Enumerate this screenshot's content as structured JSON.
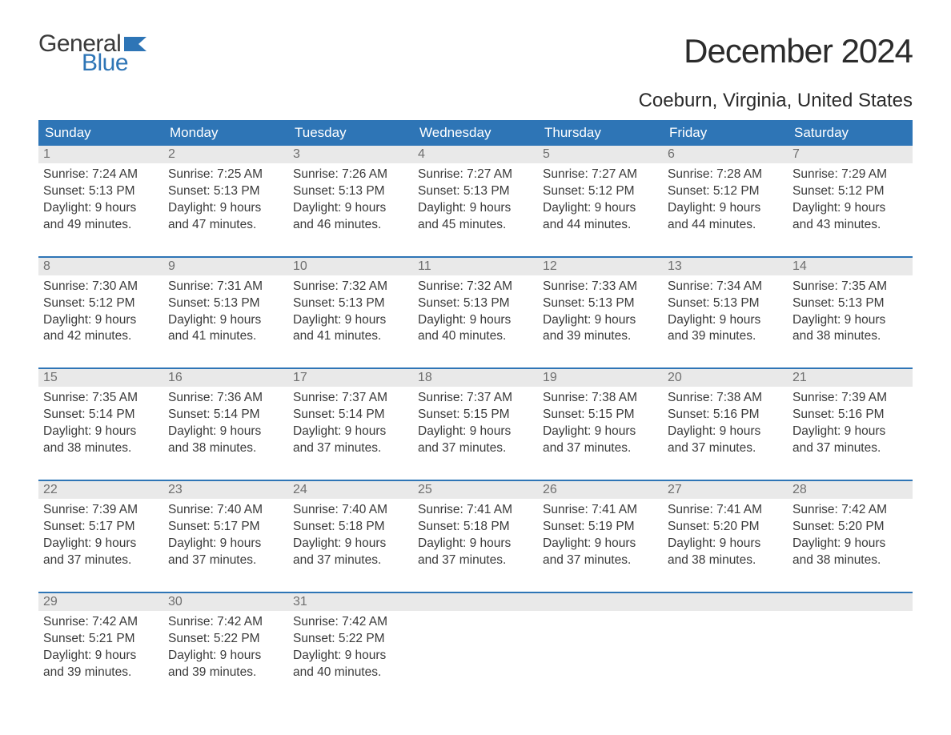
{
  "brand": {
    "top": "General",
    "bottom": "Blue"
  },
  "title": "December 2024",
  "location": "Coeburn, Virginia, United States",
  "colors": {
    "header_bg": "#2e75b6",
    "header_text": "#ffffff",
    "daynum_bg": "#e9e9e9",
    "daynum_text": "#6f6f6f",
    "body_text": "#3a3a3a",
    "week_rule": "#2e75b6",
    "brand_blue": "#2e75b6"
  },
  "days_of_week": [
    "Sunday",
    "Monday",
    "Tuesday",
    "Wednesday",
    "Thursday",
    "Friday",
    "Saturday"
  ],
  "weeks": [
    {
      "nums": [
        "1",
        "2",
        "3",
        "4",
        "5",
        "6",
        "7"
      ],
      "cells": [
        {
          "sunrise": "Sunrise: 7:24 AM",
          "sunset": "Sunset: 5:13 PM",
          "d1": "Daylight: 9 hours",
          "d2": "and 49 minutes."
        },
        {
          "sunrise": "Sunrise: 7:25 AM",
          "sunset": "Sunset: 5:13 PM",
          "d1": "Daylight: 9 hours",
          "d2": "and 47 minutes."
        },
        {
          "sunrise": "Sunrise: 7:26 AM",
          "sunset": "Sunset: 5:13 PM",
          "d1": "Daylight: 9 hours",
          "d2": "and 46 minutes."
        },
        {
          "sunrise": "Sunrise: 7:27 AM",
          "sunset": "Sunset: 5:13 PM",
          "d1": "Daylight: 9 hours",
          "d2": "and 45 minutes."
        },
        {
          "sunrise": "Sunrise: 7:27 AM",
          "sunset": "Sunset: 5:12 PM",
          "d1": "Daylight: 9 hours",
          "d2": "and 44 minutes."
        },
        {
          "sunrise": "Sunrise: 7:28 AM",
          "sunset": "Sunset: 5:12 PM",
          "d1": "Daylight: 9 hours",
          "d2": "and 44 minutes."
        },
        {
          "sunrise": "Sunrise: 7:29 AM",
          "sunset": "Sunset: 5:12 PM",
          "d1": "Daylight: 9 hours",
          "d2": "and 43 minutes."
        }
      ]
    },
    {
      "nums": [
        "8",
        "9",
        "10",
        "11",
        "12",
        "13",
        "14"
      ],
      "cells": [
        {
          "sunrise": "Sunrise: 7:30 AM",
          "sunset": "Sunset: 5:12 PM",
          "d1": "Daylight: 9 hours",
          "d2": "and 42 minutes."
        },
        {
          "sunrise": "Sunrise: 7:31 AM",
          "sunset": "Sunset: 5:13 PM",
          "d1": "Daylight: 9 hours",
          "d2": "and 41 minutes."
        },
        {
          "sunrise": "Sunrise: 7:32 AM",
          "sunset": "Sunset: 5:13 PM",
          "d1": "Daylight: 9 hours",
          "d2": "and 41 minutes."
        },
        {
          "sunrise": "Sunrise: 7:32 AM",
          "sunset": "Sunset: 5:13 PM",
          "d1": "Daylight: 9 hours",
          "d2": "and 40 minutes."
        },
        {
          "sunrise": "Sunrise: 7:33 AM",
          "sunset": "Sunset: 5:13 PM",
          "d1": "Daylight: 9 hours",
          "d2": "and 39 minutes."
        },
        {
          "sunrise": "Sunrise: 7:34 AM",
          "sunset": "Sunset: 5:13 PM",
          "d1": "Daylight: 9 hours",
          "d2": "and 39 minutes."
        },
        {
          "sunrise": "Sunrise: 7:35 AM",
          "sunset": "Sunset: 5:13 PM",
          "d1": "Daylight: 9 hours",
          "d2": "and 38 minutes."
        }
      ]
    },
    {
      "nums": [
        "15",
        "16",
        "17",
        "18",
        "19",
        "20",
        "21"
      ],
      "cells": [
        {
          "sunrise": "Sunrise: 7:35 AM",
          "sunset": "Sunset: 5:14 PM",
          "d1": "Daylight: 9 hours",
          "d2": "and 38 minutes."
        },
        {
          "sunrise": "Sunrise: 7:36 AM",
          "sunset": "Sunset: 5:14 PM",
          "d1": "Daylight: 9 hours",
          "d2": "and 38 minutes."
        },
        {
          "sunrise": "Sunrise: 7:37 AM",
          "sunset": "Sunset: 5:14 PM",
          "d1": "Daylight: 9 hours",
          "d2": "and 37 minutes."
        },
        {
          "sunrise": "Sunrise: 7:37 AM",
          "sunset": "Sunset: 5:15 PM",
          "d1": "Daylight: 9 hours",
          "d2": "and 37 minutes."
        },
        {
          "sunrise": "Sunrise: 7:38 AM",
          "sunset": "Sunset: 5:15 PM",
          "d1": "Daylight: 9 hours",
          "d2": "and 37 minutes."
        },
        {
          "sunrise": "Sunrise: 7:38 AM",
          "sunset": "Sunset: 5:16 PM",
          "d1": "Daylight: 9 hours",
          "d2": "and 37 minutes."
        },
        {
          "sunrise": "Sunrise: 7:39 AM",
          "sunset": "Sunset: 5:16 PM",
          "d1": "Daylight: 9 hours",
          "d2": "and 37 minutes."
        }
      ]
    },
    {
      "nums": [
        "22",
        "23",
        "24",
        "25",
        "26",
        "27",
        "28"
      ],
      "cells": [
        {
          "sunrise": "Sunrise: 7:39 AM",
          "sunset": "Sunset: 5:17 PM",
          "d1": "Daylight: 9 hours",
          "d2": "and 37 minutes."
        },
        {
          "sunrise": "Sunrise: 7:40 AM",
          "sunset": "Sunset: 5:17 PM",
          "d1": "Daylight: 9 hours",
          "d2": "and 37 minutes."
        },
        {
          "sunrise": "Sunrise: 7:40 AM",
          "sunset": "Sunset: 5:18 PM",
          "d1": "Daylight: 9 hours",
          "d2": "and 37 minutes."
        },
        {
          "sunrise": "Sunrise: 7:41 AM",
          "sunset": "Sunset: 5:18 PM",
          "d1": "Daylight: 9 hours",
          "d2": "and 37 minutes."
        },
        {
          "sunrise": "Sunrise: 7:41 AM",
          "sunset": "Sunset: 5:19 PM",
          "d1": "Daylight: 9 hours",
          "d2": "and 37 minutes."
        },
        {
          "sunrise": "Sunrise: 7:41 AM",
          "sunset": "Sunset: 5:20 PM",
          "d1": "Daylight: 9 hours",
          "d2": "and 38 minutes."
        },
        {
          "sunrise": "Sunrise: 7:42 AM",
          "sunset": "Sunset: 5:20 PM",
          "d1": "Daylight: 9 hours",
          "d2": "and 38 minutes."
        }
      ]
    },
    {
      "nums": [
        "29",
        "30",
        "31",
        "",
        "",
        "",
        ""
      ],
      "cells": [
        {
          "sunrise": "Sunrise: 7:42 AM",
          "sunset": "Sunset: 5:21 PM",
          "d1": "Daylight: 9 hours",
          "d2": "and 39 minutes."
        },
        {
          "sunrise": "Sunrise: 7:42 AM",
          "sunset": "Sunset: 5:22 PM",
          "d1": "Daylight: 9 hours",
          "d2": "and 39 minutes."
        },
        {
          "sunrise": "Sunrise: 7:42 AM",
          "sunset": "Sunset: 5:22 PM",
          "d1": "Daylight: 9 hours",
          "d2": "and 40 minutes."
        },
        {
          "sunrise": "",
          "sunset": "",
          "d1": "",
          "d2": ""
        },
        {
          "sunrise": "",
          "sunset": "",
          "d1": "",
          "d2": ""
        },
        {
          "sunrise": "",
          "sunset": "",
          "d1": "",
          "d2": ""
        },
        {
          "sunrise": "",
          "sunset": "",
          "d1": "",
          "d2": ""
        }
      ]
    }
  ]
}
